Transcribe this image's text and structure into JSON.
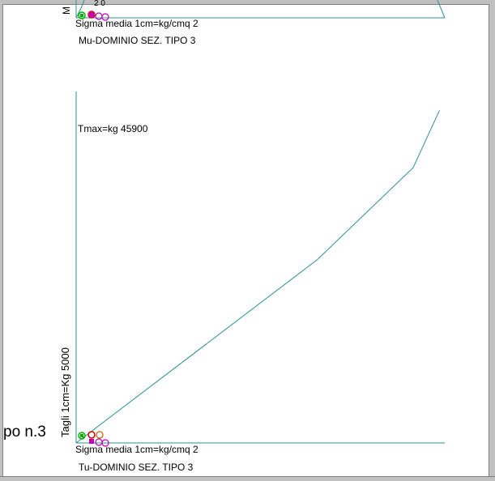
{
  "colors": {
    "axis": "#2f8f8f",
    "line": "#2f8f8f",
    "frame": "#c0c0c0"
  },
  "top_chart": {
    "y_axis_char": "M",
    "top_fragment": "2 0",
    "x_label": "Sigma media 1cm=kg/cmq  2",
    "caption": "Mu-DOMINIO SEZ. TIPO   3"
  },
  "left_fragment": "po n.3",
  "chart_data": {
    "type": "line",
    "title": "Tu-DOMINIO SEZ. TIPO   3",
    "xlabel": "Sigma media 1cm=kg/cmq  2",
    "ylabel": "Tagli 1cm=Kg  5000",
    "annotation": "Tmax=kg  45900",
    "x": [
      0,
      22.9,
      32,
      34.5
    ],
    "y": [
      0,
      25300,
      38000,
      45900
    ],
    "xlim": [
      0,
      35
    ],
    "ylim": [
      0,
      48500
    ],
    "grid": false
  }
}
